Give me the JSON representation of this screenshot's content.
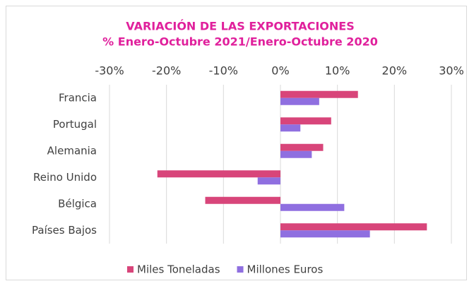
{
  "chart_data": {
    "type": "hbar",
    "title": "VARIACIÓN DE LAS EXPORTACIONES",
    "subtitle": "% Enero-Octubre 2021/Enero-Octubre 2020",
    "categories": [
      "Francia",
      "Portugal",
      "Alemania",
      "Reino Unido",
      "Bélgica",
      "Países Bajos"
    ],
    "series": [
      {
        "name": "Miles Toneladas",
        "color": "#d8457a",
        "values": [
          13.6,
          8.9,
          7.5,
          -21.6,
          -13.2,
          25.7
        ]
      },
      {
        "name": "Millones Euros",
        "color": "#8f6fe0",
        "values": [
          6.8,
          3.5,
          5.5,
          -4.0,
          11.2,
          15.7
        ]
      }
    ],
    "xlim": [
      -30,
      30
    ],
    "xticks": [
      {
        "value": -30,
        "label": "-30%"
      },
      {
        "value": -20,
        "label": "-20%"
      },
      {
        "value": -10,
        "label": "-10%"
      },
      {
        "value": 0,
        "label": "0%"
      },
      {
        "value": 10,
        "label": "10%"
      },
      {
        "value": 20,
        "label": "20%"
      },
      {
        "value": 30,
        "label": "30%"
      }
    ],
    "grid": true,
    "legend": "bottom"
  }
}
